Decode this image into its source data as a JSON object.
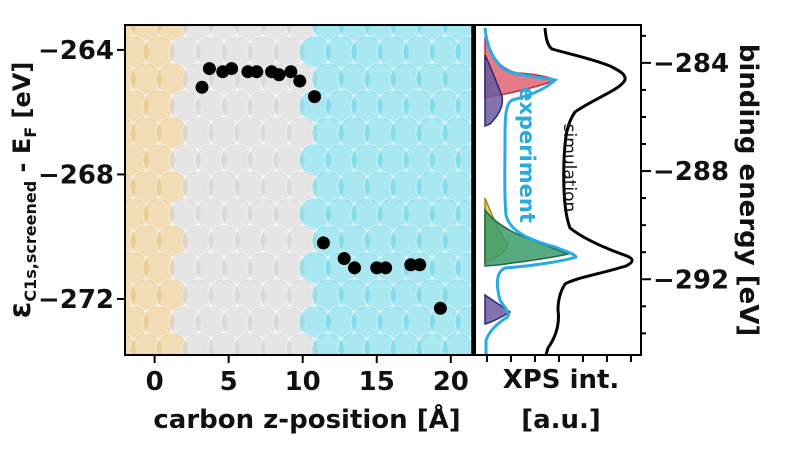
{
  "chart_data": [
    {
      "type": "scatter",
      "xlabel": "carbon z-position [Å]",
      "ylabel_main": "ε",
      "ylabel_sub": "C1s,screened",
      "ylabel_tail": " - E",
      "ylabel_tail_sub": "F",
      "ylabel_unit": " [eV]",
      "xlim": [
        -2,
        21.5
      ],
      "ylim": [
        -273.8,
        -263.2
      ],
      "xticks": [
        0,
        5,
        10,
        15,
        20
      ],
      "yticks": [
        -264,
        -268,
        -272
      ],
      "points": [
        {
          "x": 3.2,
          "y": -265.2
        },
        {
          "x": 3.7,
          "y": -264.6
        },
        {
          "x": 4.6,
          "y": -264.7
        },
        {
          "x": 5.2,
          "y": -264.6
        },
        {
          "x": 6.3,
          "y": -264.7
        },
        {
          "x": 6.9,
          "y": -264.7
        },
        {
          "x": 7.9,
          "y": -264.7
        },
        {
          "x": 8.4,
          "y": -264.8
        },
        {
          "x": 9.2,
          "y": -264.7
        },
        {
          "x": 9.8,
          "y": -265.0
        },
        {
          "x": 10.8,
          "y": -265.5
        },
        {
          "x": 11.4,
          "y": -270.2
        },
        {
          "x": 12.8,
          "y": -270.7
        },
        {
          "x": 13.5,
          "y": -271.0
        },
        {
          "x": 15.0,
          "y": -271.0
        },
        {
          "x": 15.6,
          "y": -271.0
        },
        {
          "x": 17.3,
          "y": -270.9
        },
        {
          "x": 17.9,
          "y": -270.9
        },
        {
          "x": 19.3,
          "y": -272.3
        }
      ]
    },
    {
      "type": "line",
      "xlabel": "XPS int.",
      "xlabel_unit": "[a.u.]",
      "ylabel": "binding energy [eV]",
      "ylim": [
        -294.8,
        -282.6
      ],
      "yticks": [
        -284,
        -288,
        -292
      ],
      "series": [
        {
          "name": "simulation",
          "color": "#000000"
        },
        {
          "name": "experiment",
          "color": "#29abe2"
        }
      ],
      "peaks": [
        {
          "position": -284.4,
          "label_color": "#e05a6a"
        },
        {
          "position": -291.4,
          "label_color": "#3a9a68"
        }
      ]
    }
  ],
  "colors": {
    "oxygen_atom": "#62d4e6",
    "carbon_atom": "#d0d0d0",
    "sulfur_atom": "#ecec7a",
    "gold_atom": "#e6c078",
    "peak_red": "#e05a6a",
    "peak_green": "#3a9a68",
    "peak_yellow": "#e0c040",
    "peak_purple": "#6a5aa0"
  }
}
